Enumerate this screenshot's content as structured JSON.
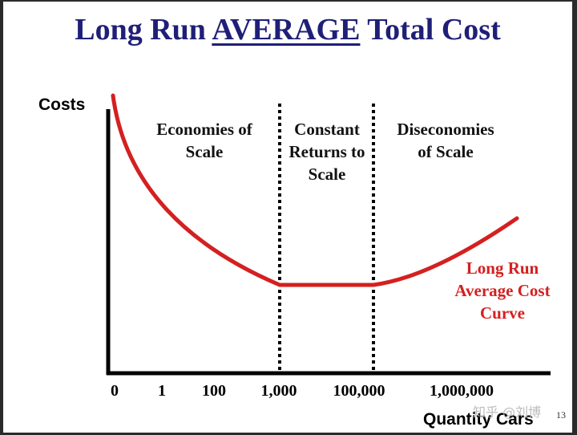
{
  "slide": {
    "title_pre": "Long Run ",
    "title_em": "AVERAGE",
    "title_post": " Total Cost",
    "page_number": "13",
    "watermark": "知乎 @刘博"
  },
  "chart_data": {
    "type": "line",
    "ylabel": "Costs",
    "xlabel": "Quantity Cars",
    "x_ticks": [
      "0",
      "1",
      "100",
      "1,000",
      "100,000",
      "1,000,000"
    ],
    "regions": [
      {
        "lines": [
          "Economies of",
          "Scale"
        ]
      },
      {
        "lines": [
          "Constant",
          "Returns to",
          "Scale"
        ]
      },
      {
        "lines": [
          "Diseconomies",
          "of Scale"
        ]
      }
    ],
    "curve_label": [
      "Long Run",
      "Average Cost",
      "Curve"
    ],
    "curve_color": "#d42020",
    "axis_color": "#000000",
    "title_color": "#1f1f78"
  }
}
